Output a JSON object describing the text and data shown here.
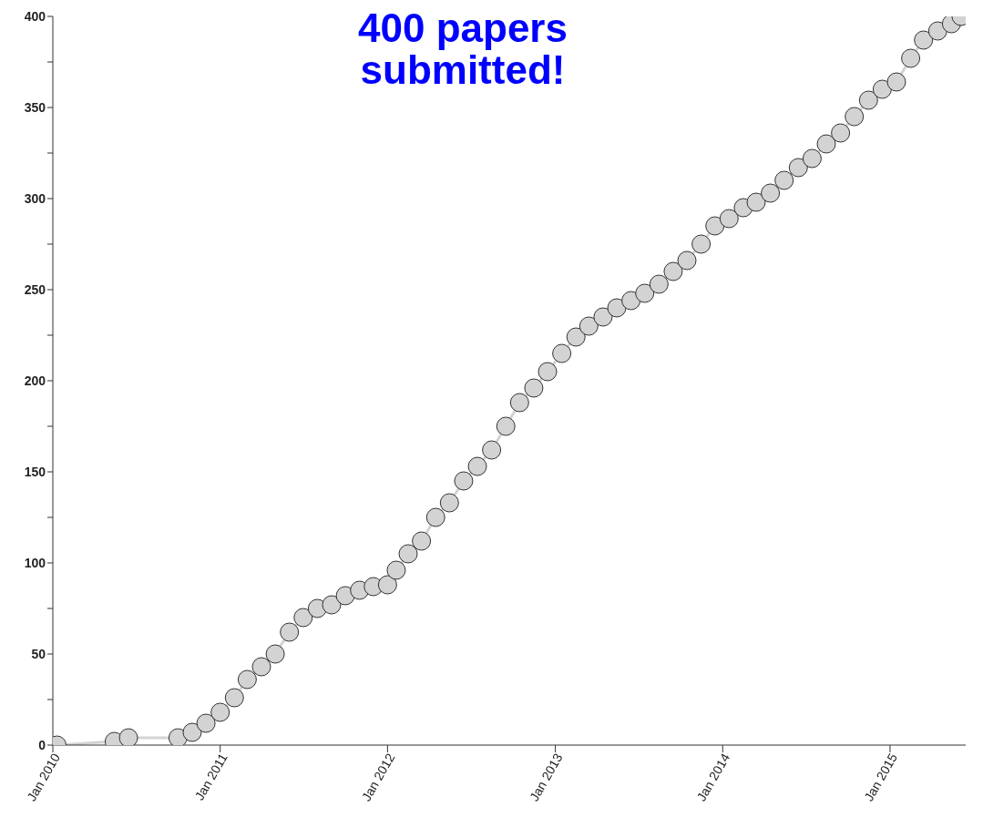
{
  "chart_data": {
    "type": "line",
    "title": "400 papers\nsubmitted!",
    "marker": "circle",
    "grid": false,
    "legend": false,
    "x": [
      "2010-01-10",
      "2010-05-15",
      "2010-06-15",
      "2010-10-01",
      "2010-11-01",
      "2010-12-01",
      "2011-01-01",
      "2011-02-01",
      "2011-03-01",
      "2011-04-01",
      "2011-05-01",
      "2011-06-01",
      "2011-07-01",
      "2011-08-01",
      "2011-09-01",
      "2011-10-01",
      "2011-11-01",
      "2011-12-01",
      "2012-01-01",
      "2012-01-20",
      "2012-02-15",
      "2012-03-15",
      "2012-04-15",
      "2012-05-15",
      "2012-06-15",
      "2012-07-15",
      "2012-08-15",
      "2012-09-15",
      "2012-10-15",
      "2012-11-15",
      "2012-12-15",
      "2013-01-15",
      "2013-02-15",
      "2013-03-15",
      "2013-04-15",
      "2013-05-15",
      "2013-06-15",
      "2013-07-15",
      "2013-08-15",
      "2013-09-15",
      "2013-10-15",
      "2013-11-15",
      "2013-12-15",
      "2014-01-15",
      "2014-02-15",
      "2014-03-15",
      "2014-04-15",
      "2014-05-15",
      "2014-06-15",
      "2014-07-15",
      "2014-08-15",
      "2014-09-15",
      "2014-10-15",
      "2014-11-15",
      "2014-12-15",
      "2015-01-15",
      "2015-02-15",
      "2015-03-15",
      "2015-04-15",
      "2015-05-15",
      "2015-06-05"
    ],
    "series": [
      {
        "color": "#d3d3d3",
        "values": [
          0,
          2,
          4,
          4,
          7,
          12,
          18,
          26,
          36,
          43,
          50,
          62,
          70,
          75,
          77,
          82,
          85,
          87,
          88,
          96,
          105,
          112,
          125,
          133,
          145,
          153,
          162,
          175,
          188,
          196,
          205,
          215,
          224,
          230,
          235,
          240,
          244,
          248,
          253,
          260,
          266,
          275,
          285,
          289,
          295,
          298,
          303,
          310,
          317,
          322,
          330,
          336,
          345,
          354,
          360,
          364,
          377,
          387,
          392,
          396,
          400
        ]
      }
    ],
    "xlim": [
      "2010-01-01",
      "2015-06-15"
    ],
    "xticks": [
      {
        "value": "2010-01",
        "label": "Jan 2010"
      },
      {
        "value": "2011-01",
        "label": "Jan 2011"
      },
      {
        "value": "2012-01",
        "label": "Jan 2012"
      },
      {
        "value": "2013-01",
        "label": "Jan 2013"
      },
      {
        "value": "2014-01",
        "label": "Jan 2014"
      },
      {
        "value": "2015-01",
        "label": "Jan 2015"
      }
    ],
    "ylim": [
      0,
      400
    ],
    "yticks": [
      0,
      {
        "value": 25,
        "label": null
      },
      50,
      {
        "value": 75,
        "label": null
      },
      100,
      {
        "value": 125,
        "label": null
      },
      150,
      {
        "value": 175,
        "label": null
      },
      200,
      {
        "value": 225,
        "label": null
      },
      250,
      {
        "value": 275,
        "label": null
      },
      300,
      {
        "value": 325,
        "label": null
      },
      350,
      {
        "value": 375,
        "label": null
      },
      400
    ]
  }
}
